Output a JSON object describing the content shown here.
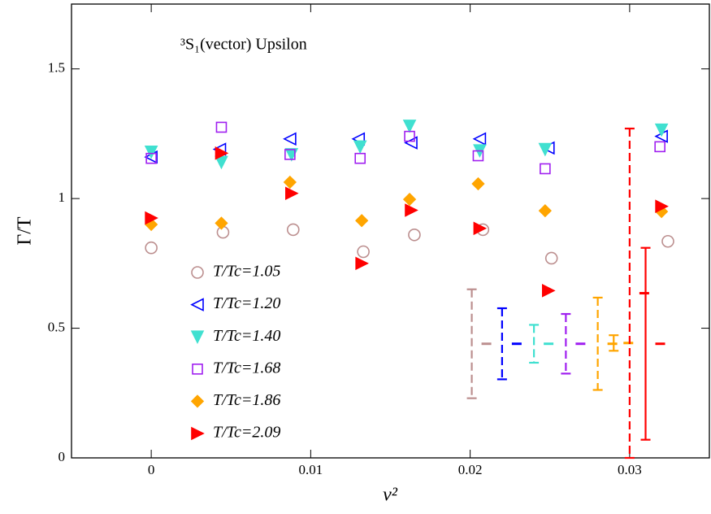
{
  "chart_data": {
    "type": "scatter",
    "annotation": "³S₁(vector) Upsilon",
    "xlabel": "v²",
    "ylabel": "Γ/T",
    "xlim": [
      -0.005,
      0.035
    ],
    "ylim": [
      0,
      1.75
    ],
    "xticks": [
      0,
      0.01,
      0.02,
      0.03
    ],
    "yticks": [
      0,
      0.5,
      1,
      1.5
    ],
    "legend": "lower-left",
    "series": [
      {
        "name": "T/Tc=1.05",
        "color": "#bc8f8f",
        "marker": "circle",
        "x": [
          0,
          0.0045,
          0.0089,
          0.0133,
          0.0165,
          0.0208,
          0.0251,
          0.0324
        ],
        "values": [
          0.81,
          0.87,
          0.88,
          0.795,
          0.86,
          0.88,
          0.77,
          0.835
        ]
      },
      {
        "name": "T/Tc=1.20",
        "color": "#0000ff",
        "marker": "triangle-left",
        "x": [
          0,
          0.0043,
          0.0087,
          0.013,
          0.0163,
          0.0206,
          0.0249,
          0.032
        ],
        "values": [
          1.16,
          1.19,
          1.23,
          1.23,
          1.215,
          1.23,
          1.195,
          1.24
        ]
      },
      {
        "name": "T/Tc=1.40",
        "color": "#40e0d0",
        "marker": "triangle-down",
        "x": [
          0,
          0.0044,
          0.0088,
          0.0131,
          0.0162,
          0.0206,
          0.0247,
          0.032
        ],
        "values": [
          1.18,
          1.14,
          1.17,
          1.2,
          1.28,
          1.185,
          1.19,
          1.265
        ]
      },
      {
        "name": "T/Tc=1.68",
        "color": "#a020f0",
        "marker": "square",
        "x": [
          0,
          0.0044,
          0.0087,
          0.0131,
          0.0162,
          0.0205,
          0.0247,
          0.0319
        ],
        "values": [
          1.155,
          1.275,
          1.17,
          1.155,
          1.24,
          1.165,
          1.115,
          1.2
        ]
      },
      {
        "name": "T/Tc=1.86",
        "color": "#ffa500",
        "marker": "diamond",
        "x": [
          0,
          0.0044,
          0.0087,
          0.0132,
          0.0162,
          0.0205,
          0.0247,
          0.032
        ],
        "values": [
          0.9,
          0.905,
          1.063,
          0.915,
          0.997,
          1.057,
          0.953,
          0.95
        ]
      },
      {
        "name": "T/Tc=2.09",
        "color": "#ff0000",
        "marker": "triangle-right",
        "x": [
          0,
          0.0044,
          0.0088,
          0.0132,
          0.0163,
          0.0206,
          0.0249,
          0.032
        ],
        "values": [
          0.925,
          1.175,
          1.02,
          0.75,
          0.955,
          0.885,
          0.645,
          0.97
        ]
      }
    ],
    "error_bars": [
      {
        "color": "#bc8f8f",
        "dashed": true,
        "x": 0.0201,
        "y": 0.44,
        "err": 0.21
      },
      {
        "color": "#0000ff",
        "dashed": true,
        "x": 0.022,
        "y": 0.44,
        "err": 0.137
      },
      {
        "color": "#40e0d0",
        "dashed": true,
        "x": 0.024,
        "y": 0.44,
        "err": 0.073
      },
      {
        "color": "#a020f0",
        "dashed": true,
        "x": 0.026,
        "y": 0.44,
        "err": 0.115
      },
      {
        "color": "#ffa500",
        "dashed": true,
        "x": 0.028,
        "y": 0.44,
        "err": 0.178
      },
      {
        "color": "#ffa500",
        "dashed": false,
        "x": 0.029,
        "y": 0.443,
        "err": 0.03
      },
      {
        "color": "#ff0000",
        "dashed": true,
        "x": 0.03,
        "y": 0.635,
        "err": 0.635
      },
      {
        "color": "#ff0000",
        "dashed": false,
        "x": 0.031,
        "y": 0.44,
        "err": 0.37
      }
    ]
  }
}
